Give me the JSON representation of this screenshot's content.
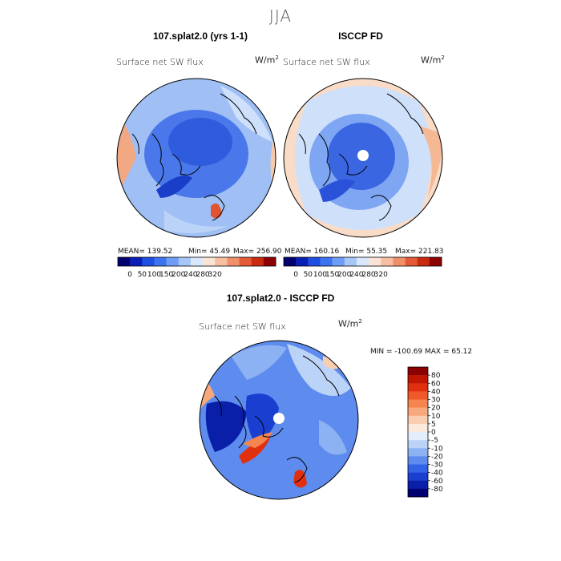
{
  "figure": {
    "season": "JJA",
    "units_base": "W/m",
    "units_exp": "2",
    "variable": "Surface net SW flux"
  },
  "panels": [
    {
      "title": "107.splat2.0 (yrs 1-1)",
      "mean": "MEAN= 139.52",
      "min": "Min= 45.49",
      "max": "Max= 256.90"
    },
    {
      "title": "ISCCP FD",
      "mean": "MEAN= 160.16",
      "min": "Min= 55.35",
      "max": "Max= 221.83"
    },
    {
      "title": "107.splat2.0 - ISCCP FD",
      "minmax": "MIN = -100.69 MAX = 65.12"
    }
  ],
  "colorbar_top": {
    "labels": [
      "0",
      "50",
      "100",
      "150",
      "200",
      "240",
      "280",
      "320"
    ],
    "colors": [
      "#00006e",
      "#0a1fb4",
      "#1f4fe0",
      "#3c73f0",
      "#6f9cf5",
      "#a6c6f8",
      "#d8e7fb",
      "#fbe4d4",
      "#f6bfa1",
      "#f08f6a",
      "#e55a36",
      "#c92a10",
      "#8b0000"
    ]
  },
  "colorbar_diff": {
    "labels": [
      "80",
      "60",
      "40",
      "30",
      "20",
      "10",
      "5",
      "0",
      "-5",
      "-10",
      "-20",
      "-30",
      "-40",
      "-60",
      "-80"
    ],
    "colors": [
      "#8b0000",
      "#c01600",
      "#e03010",
      "#f05a2a",
      "#f5844f",
      "#f7a97c",
      "#f9cdb0",
      "#fbeadc",
      "#e4eefb",
      "#bcd3f8",
      "#8db2f3",
      "#5d8cee",
      "#3363e6",
      "#1a3fd0",
      "#0a1fa8",
      "#000070"
    ]
  },
  "chart_data": [
    {
      "type": "heatmap",
      "title": "107.splat2.0 (yrs 1-1)",
      "subtitle": "Surface net SW flux",
      "units": "W/m2",
      "stats": {
        "mean": 139.52,
        "min": 45.49,
        "max": 256.9
      },
      "levels": [
        0,
        50,
        100,
        150,
        200,
        240,
        280,
        320
      ]
    },
    {
      "type": "heatmap",
      "title": "ISCCP FD",
      "subtitle": "Surface net SW flux",
      "units": "W/m2",
      "stats": {
        "mean": 160.16,
        "min": 55.35,
        "max": 221.83
      },
      "levels": [
        0,
        50,
        100,
        150,
        200,
        240,
        280,
        320
      ]
    },
    {
      "type": "heatmap",
      "title": "107.splat2.0 - ISCCP FD",
      "subtitle": "Surface net SW flux",
      "units": "W/m2",
      "stats": {
        "min": -100.69,
        "max": 65.12
      },
      "levels": [
        80,
        60,
        40,
        30,
        20,
        10,
        5,
        0,
        -5,
        -10,
        -20,
        -30,
        -40,
        -60,
        -80
      ]
    }
  ]
}
